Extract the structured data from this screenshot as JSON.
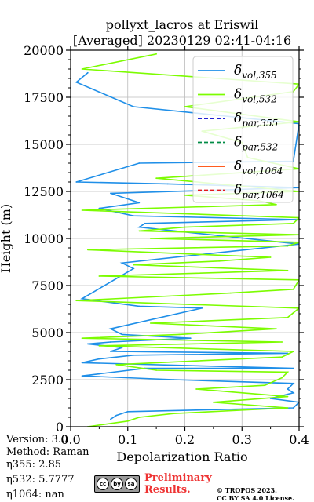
{
  "title": {
    "line1": "pollyxt_lacros at Eriswil",
    "line2": "[Averaged] 20230129 02:41-04:16"
  },
  "info": {
    "version": "Version: 3.0",
    "method": "Method: Raman",
    "eta355": "η355:   2.85",
    "eta532": "η532: 5.7777",
    "eta1064": "η1064:    nan"
  },
  "footer": {
    "preliminary_line1": "Preliminary",
    "preliminary_line2": "Results.",
    "copyright_line1": "© TROPOS 2023.",
    "copyright_line2": "CC BY SA 4.0 License.",
    "license_badge": [
      "cc",
      "by",
      "sa"
    ]
  },
  "colors": {
    "vol355": "#1f8fe8",
    "vol532": "#7cfc00",
    "par355": "#0000cd",
    "par532": "#008b45",
    "vol1064": "#ff4500",
    "par1064": "#e31a1c",
    "grid": "#bbbbbb"
  },
  "chart_data": {
    "type": "line",
    "xlabel": "Depolarization Ratio",
    "ylabel": "Height (m)",
    "xlim": [
      0.0,
      0.4
    ],
    "ylim": [
      0,
      20000
    ],
    "xticks": [
      0.0,
      0.1,
      0.2,
      0.3,
      0.4
    ],
    "xtick_labels": [
      "0.0",
      "0.1",
      "0.2",
      "0.3",
      "0.4"
    ],
    "yticks": [
      0,
      2500,
      5000,
      7500,
      10000,
      12500,
      15000,
      17500,
      20000
    ],
    "ytick_labels": [
      "0",
      "2500",
      "5000",
      "7500",
      "10000",
      "12500",
      "15000",
      "17500",
      "20000"
    ],
    "grid": true,
    "legend_position": "top-right",
    "series": [
      {
        "name": "vol,355",
        "style": "solid",
        "color_key": "vol355",
        "x": [
          0.07,
          0.075,
          0.08,
          0.1,
          0.39,
          0.4,
          0.35,
          0.39,
          0.38,
          0.39,
          0.18,
          0.02,
          0.13,
          0.39,
          0.02,
          0.05,
          0.11,
          0.38,
          0.07,
          0.09,
          0.03,
          0.07,
          0.21,
          0.09,
          0.07,
          0.23,
          0.12,
          0.02,
          0.11,
          0.09,
          0.4,
          0.12,
          0.13,
          0.4,
          0.11,
          0.05,
          0.12,
          0.07,
          0.4,
          0.17,
          0.01,
          0.12,
          0.39,
          0.4,
          0.11,
          0.01,
          0.03
        ],
        "y": [
          400,
          500,
          600,
          800,
          1000,
          1300,
          1500,
          1800,
          2000,
          2300,
          2500,
          2700,
          3100,
          3100,
          3400,
          3600,
          3800,
          3900,
          4000,
          4200,
          4400,
          4500,
          4700,
          4900,
          5200,
          6300,
          6400,
          6800,
          8400,
          8700,
          9700,
          10600,
          10800,
          11000,
          11200,
          11600,
          11900,
          12400,
          12700,
          12900,
          13000,
          14000,
          14100,
          16100,
          17000,
          18300,
          18800
        ]
      },
      {
        "name": "vol,532",
        "style": "solid",
        "color_key": "vol532",
        "x": [
          0.03,
          0.1,
          0.12,
          0.18,
          0.38,
          0.25,
          0.38,
          0.22,
          0.34,
          0.37,
          0.38,
          0.15,
          0.08,
          0.37,
          0.39,
          0.05,
          0.37,
          0.02,
          0.19,
          0.36,
          0.14,
          0.38,
          0.4,
          0.01,
          0.28,
          0.39,
          0.4,
          0.05,
          0.38,
          0.11,
          0.26,
          0.35,
          0.19,
          0.03,
          0.38,
          0.4,
          0.14,
          0.4,
          0.12,
          0.2,
          0.39,
          0.4,
          0.02,
          0.36,
          0.33,
          0.2,
          0.4,
          0.15,
          0.4,
          0.31,
          0.3,
          0.23,
          0.4,
          0.2,
          0.39,
          0.4,
          0.02,
          0.15
        ],
        "y": [
          0,
          300,
          500,
          700,
          1000,
          1300,
          1600,
          2000,
          2200,
          2600,
          2900,
          3000,
          3300,
          3700,
          4000,
          4300,
          4500,
          4700,
          4900,
          5200,
          5500,
          5800,
          6300,
          6700,
          7100,
          7300,
          7800,
          8000,
          8300,
          8600,
          8800,
          9000,
          9200,
          9400,
          9600,
          9800,
          10000,
          10200,
          10400,
          10600,
          10800,
          11100,
          11500,
          11800,
          12000,
          12300,
          12500,
          13200,
          13700,
          14300,
          15100,
          15700,
          16200,
          17000,
          17800,
          18200,
          19000,
          19800
        ]
      },
      {
        "name": "par,355",
        "style": "dashed",
        "color_key": "par355",
        "x": [],
        "y": []
      },
      {
        "name": "par,532",
        "style": "dashed",
        "color_key": "par532",
        "x": [],
        "y": []
      },
      {
        "name": "vol,1064",
        "style": "solid",
        "color_key": "vol1064",
        "x": [],
        "y": []
      },
      {
        "name": "par,1064",
        "style": "dashed",
        "color_key": "par1064",
        "x": [],
        "y": []
      }
    ],
    "legend": [
      {
        "sym": "δ",
        "sub": "vol,355",
        "style": "solid",
        "color_key": "vol355"
      },
      {
        "sym": "δ",
        "sub": "vol,532",
        "style": "solid",
        "color_key": "vol532"
      },
      {
        "sym": "δ",
        "sub": "par,355",
        "style": "dashed",
        "color_key": "par355"
      },
      {
        "sym": "δ",
        "sub": "par,532",
        "style": "dashed",
        "color_key": "par532"
      },
      {
        "sym": "δ",
        "sub": "vol,1064",
        "style": "solid",
        "color_key": "vol1064"
      },
      {
        "sym": "δ",
        "sub": "par,1064",
        "style": "dashed",
        "color_key": "par1064"
      }
    ]
  }
}
